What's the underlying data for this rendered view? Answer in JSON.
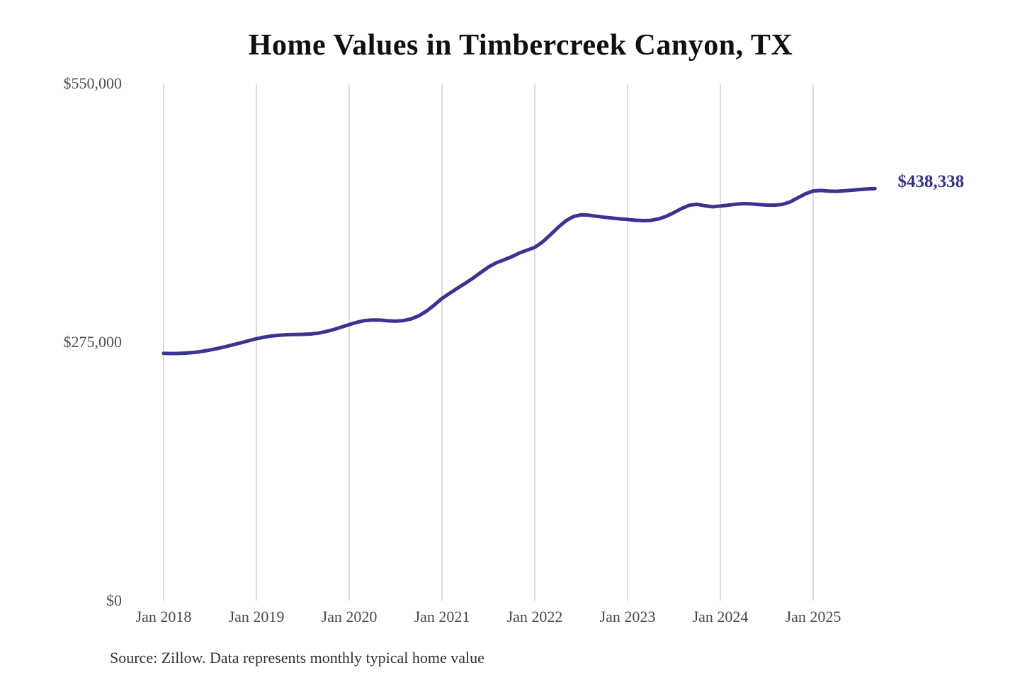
{
  "title": "Home Values in Timbercreek Canyon, TX",
  "source_note": "Source: Zillow. Data represents monthly typical home value",
  "end_label": "$438,338",
  "colors": {
    "line": "#3b3292",
    "end_label": "#33308f",
    "gridline": "#c9c9c9",
    "title": "#101010",
    "axis_labels": "#4a4a4a",
    "background": "#ffffff"
  },
  "chart_data": {
    "type": "line",
    "title": "Home Values in Timbercreek Canyon, TX",
    "xlabel": "",
    "ylabel": "",
    "frequency": "monthly",
    "x_start": "Jan 2018",
    "x_end": "Sep 2025",
    "ylim": [
      0,
      550000
    ],
    "grid": "vertical-only",
    "legend_position": "none",
    "y_ticks": [
      {
        "label": "$0",
        "value": 0
      },
      {
        "label": "$275,000",
        "value": 275000
      },
      {
        "label": "$550,000",
        "value": 550000
      }
    ],
    "x_ticks": [
      {
        "label": "Jan 2018",
        "month_index": 0
      },
      {
        "label": "Jan 2019",
        "month_index": 12
      },
      {
        "label": "Jan 2020",
        "month_index": 24
      },
      {
        "label": "Jan 2021",
        "month_index": 36
      },
      {
        "label": "Jan 2022",
        "month_index": 48
      },
      {
        "label": "Jan 2023",
        "month_index": 60
      },
      {
        "label": "Jan 2024",
        "month_index": 72
      },
      {
        "label": "Jan 2025",
        "month_index": 84
      }
    ],
    "series": [
      {
        "name": "Monthly typical home value",
        "color": "#3b3292",
        "end_value": 438338,
        "values": [
          263000,
          262900,
          263000,
          263400,
          264100,
          265200,
          266600,
          268300,
          270200,
          272200,
          274300,
          276500,
          278600,
          280300,
          281600,
          282400,
          282900,
          283100,
          283300,
          283700,
          284600,
          286200,
          288400,
          291000,
          293600,
          296100,
          297900,
          298600,
          298400,
          297700,
          297300,
          297900,
          299600,
          303000,
          308000,
          314500,
          321500,
          327000,
          332300,
          337500,
          343000,
          349000,
          354800,
          359300,
          362500,
          365800,
          369800,
          372800,
          375800,
          381500,
          389000,
          397000,
          404000,
          408600,
          410400,
          410000,
          408900,
          407800,
          406900,
          406100,
          405500,
          404700,
          404200,
          404500,
          406000,
          408800,
          412800,
          417200,
          420600,
          421600,
          420000,
          419000,
          419700,
          420700,
          421700,
          422300,
          422000,
          421300,
          420800,
          420700,
          421500,
          424000,
          428500,
          432800,
          435800,
          436300,
          435700,
          435400,
          435900,
          436600,
          437300,
          437900,
          438338
        ]
      }
    ]
  }
}
